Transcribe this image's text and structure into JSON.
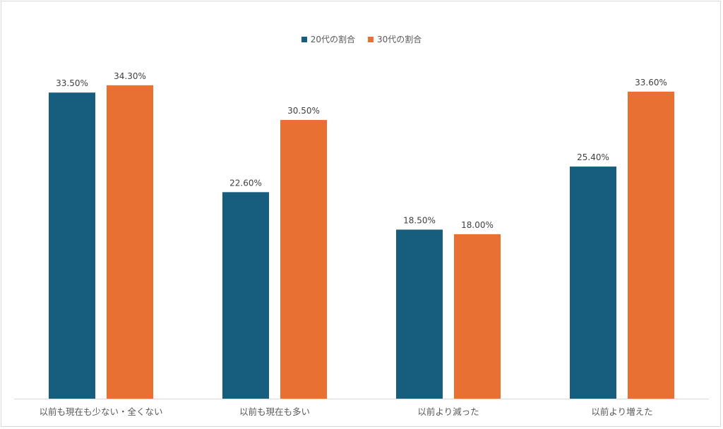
{
  "chart_data": {
    "type": "bar",
    "title": "",
    "xlabel": "",
    "ylabel": "",
    "ylim": [
      0,
      36
    ],
    "grid": false,
    "legend_position": "top-center",
    "categories": [
      "以前も現在も少ない・全くない",
      "以前も現在も多い",
      "以前より減った",
      "以前より増えた"
    ],
    "series": [
      {
        "name": "20代の割合",
        "color": "#175e7e",
        "values": [
          33.5,
          22.6,
          18.5,
          25.4
        ],
        "labels": [
          "33.50%",
          "22.60%",
          "18.50%",
          "25.40%"
        ]
      },
      {
        "name": "30代の割合",
        "color": "#e87033",
        "values": [
          34.3,
          30.5,
          18.0,
          33.6
        ],
        "labels": [
          "34.30%",
          "30.50%",
          "18.00%",
          "33.60%"
        ]
      }
    ]
  }
}
